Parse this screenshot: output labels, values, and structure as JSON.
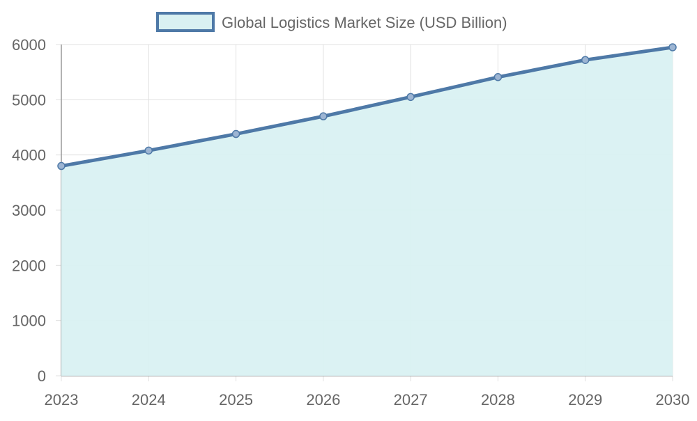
{
  "chart_data": {
    "type": "area",
    "title": "",
    "xlabel": "",
    "ylabel": "",
    "categories": [
      "2023",
      "2024",
      "2025",
      "2026",
      "2027",
      "2028",
      "2029",
      "2030"
    ],
    "series": [
      {
        "name": "Global Logistics Market Size (USD Billion)",
        "values": [
          3800,
          4080,
          4380,
          4700,
          5050,
          5410,
          5720,
          5950
        ]
      }
    ],
    "ylim": [
      0,
      6000
    ],
    "yticks": [
      0,
      1000,
      2000,
      3000,
      4000,
      5000,
      6000
    ],
    "grid": true,
    "legend": "top-center",
    "colors": {
      "line": "#4e79a7",
      "fill": "#d9f1f2",
      "grid": "#e0e0e0",
      "text": "#666666"
    }
  }
}
